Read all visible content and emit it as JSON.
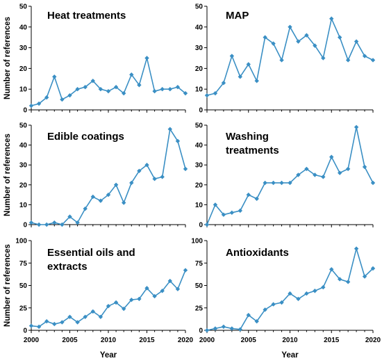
{
  "chart_data": [
    {
      "type": "line",
      "panel": "heat-treatments",
      "title_lines": [
        "Heat treatments"
      ],
      "x": [
        2000,
        2001,
        2002,
        2003,
        2004,
        2005,
        2006,
        2007,
        2008,
        2009,
        2010,
        2011,
        2012,
        2013,
        2014,
        2015,
        2016,
        2017,
        2018,
        2019,
        2020
      ],
      "values": [
        2,
        3,
        6,
        16,
        5,
        7,
        10,
        11,
        14,
        10,
        9,
        11,
        8,
        17,
        12,
        25,
        9,
        10,
        10,
        11,
        8
      ],
      "ylim": [
        0,
        50
      ],
      "yticks": [
        0,
        10,
        20,
        30,
        40,
        50
      ],
      "xticks": [],
      "ylabel": "Number of references",
      "xlabel": "",
      "color": "#3a8fc4"
    },
    {
      "type": "line",
      "panel": "map",
      "title_lines": [
        "MAP"
      ],
      "x": [
        2000,
        2001,
        2002,
        2003,
        2004,
        2005,
        2006,
        2007,
        2008,
        2009,
        2010,
        2011,
        2012,
        2013,
        2014,
        2015,
        2016,
        2017,
        2018,
        2019,
        2020
      ],
      "values": [
        7,
        8,
        13,
        26,
        16,
        22,
        14,
        35,
        32,
        24,
        40,
        33,
        36,
        31,
        25,
        44,
        35,
        24,
        33,
        26,
        24
      ],
      "ylim": [
        0,
        50
      ],
      "yticks": [
        0,
        10,
        20,
        30,
        40,
        50
      ],
      "xticks": [],
      "ylabel": "",
      "xlabel": "",
      "color": "#3a8fc4"
    },
    {
      "type": "line",
      "panel": "edible-coatings",
      "title_lines": [
        "Edible coatings"
      ],
      "x": [
        2000,
        2001,
        2002,
        2003,
        2004,
        2005,
        2006,
        2007,
        2008,
        2009,
        2010,
        2011,
        2012,
        2013,
        2014,
        2015,
        2016,
        2017,
        2018,
        2019,
        2020
      ],
      "values": [
        1,
        0,
        0,
        1,
        0,
        4,
        1,
        8,
        14,
        12,
        15,
        20,
        11,
        21,
        27,
        30,
        23,
        24,
        48,
        42,
        28
      ],
      "ylim": [
        0,
        50
      ],
      "yticks": [
        0,
        10,
        20,
        30,
        40,
        50
      ],
      "xticks": [],
      "ylabel": "Number of references",
      "xlabel": "",
      "color": "#3a8fc4"
    },
    {
      "type": "line",
      "panel": "washing-treatments",
      "title_lines": [
        "Washing",
        "treatments"
      ],
      "x": [
        2000,
        2001,
        2002,
        2003,
        2004,
        2005,
        2006,
        2007,
        2008,
        2009,
        2010,
        2011,
        2012,
        2013,
        2014,
        2015,
        2016,
        2017,
        2018,
        2019,
        2020
      ],
      "values": [
        0,
        10,
        5,
        6,
        7,
        15,
        13,
        21,
        21,
        21,
        21,
        25,
        28,
        25,
        24,
        34,
        26,
        28,
        49,
        29,
        21
      ],
      "ylim": [
        0,
        50
      ],
      "yticks": [
        0,
        10,
        20,
        30,
        40,
        50
      ],
      "xticks": [],
      "ylabel": "",
      "xlabel": "",
      "color": "#3a8fc4"
    },
    {
      "type": "line",
      "panel": "essential-oils",
      "title_lines": [
        "Essential oils and",
        "extracts"
      ],
      "x": [
        2000,
        2001,
        2002,
        2003,
        2004,
        2005,
        2006,
        2007,
        2008,
        2009,
        2010,
        2011,
        2012,
        2013,
        2014,
        2015,
        2016,
        2017,
        2018,
        2019,
        2020
      ],
      "values": [
        5,
        4,
        10,
        7,
        9,
        15,
        9,
        15,
        21,
        15,
        27,
        31,
        24,
        34,
        35,
        47,
        38,
        44,
        55,
        46,
        67
      ],
      "ylim": [
        0,
        100
      ],
      "yticks": [
        0,
        25,
        50,
        75,
        100
      ],
      "xticks": [
        2000,
        2005,
        2010,
        2015,
        2020
      ],
      "ylabel": "Number of references",
      "xlabel": "Year",
      "color": "#3a8fc4"
    },
    {
      "type": "line",
      "panel": "antioxidants",
      "title_lines": [
        "Antioxidants"
      ],
      "x": [
        2000,
        2001,
        2002,
        2003,
        2004,
        2005,
        2006,
        2007,
        2008,
        2009,
        2010,
        2011,
        2012,
        2013,
        2014,
        2015,
        2016,
        2017,
        2018,
        2019,
        2020
      ],
      "values": [
        0,
        2,
        4,
        2,
        1,
        17,
        10,
        23,
        29,
        31,
        41,
        35,
        41,
        44,
        48,
        68,
        57,
        54,
        91,
        60,
        69
      ],
      "ylim": [
        0,
        100
      ],
      "yticks": [
        0,
        25,
        50,
        75,
        100
      ],
      "xticks": [
        2000,
        2005,
        2010,
        2015,
        2020
      ],
      "ylabel": "",
      "xlabel": "Year",
      "color": "#3a8fc4"
    }
  ]
}
